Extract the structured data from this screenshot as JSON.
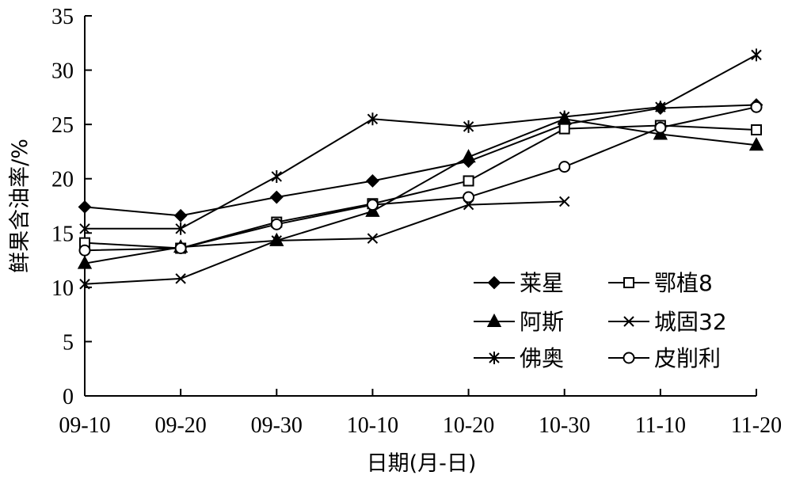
{
  "chart_data": {
    "type": "line",
    "xlabel": "日期(月-日)",
    "ylabel": "鲜果含油率/%",
    "categories": [
      "09-10",
      "09-20",
      "09-30",
      "10-10",
      "10-20",
      "10-30",
      "11-10",
      "11-20"
    ],
    "ylim": [
      0,
      35
    ],
    "yticks": [
      0,
      5,
      10,
      15,
      20,
      25,
      30,
      35
    ],
    "grid": false,
    "legend_position": "bottom-right",
    "series": [
      {
        "name": "莱星",
        "marker": "diamond-filled",
        "values": [
          17.4,
          16.6,
          18.3,
          19.8,
          21.6,
          25.0,
          26.5,
          26.8
        ]
      },
      {
        "name": "鄂植8",
        "marker": "square-open",
        "values": [
          14.1,
          13.6,
          16.0,
          17.7,
          19.8,
          24.6,
          24.9,
          24.5
        ]
      },
      {
        "name": "阿斯",
        "marker": "triangle-filled",
        "values": [
          12.2,
          13.7,
          14.3,
          17.0,
          22.0,
          25.5,
          24.1,
          23.1
        ]
      },
      {
        "name": "城固32",
        "marker": "x",
        "values": [
          10.3,
          10.8,
          14.3,
          14.5,
          17.6,
          17.9,
          null,
          null
        ]
      },
      {
        "name": "佛奥",
        "marker": "asterisk",
        "values": [
          15.4,
          15.4,
          20.2,
          25.5,
          24.8,
          25.7,
          26.6,
          31.4
        ]
      },
      {
        "name": "皮削利",
        "marker": "circle-open",
        "values": [
          13.4,
          13.6,
          15.8,
          17.6,
          18.3,
          21.1,
          24.7,
          26.6
        ]
      }
    ]
  }
}
